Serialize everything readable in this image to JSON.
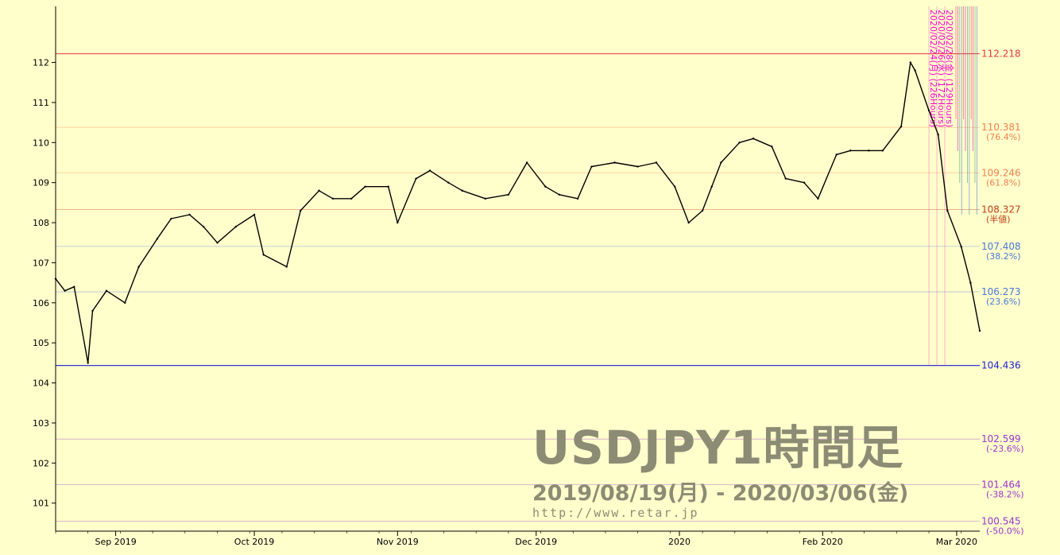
{
  "watermark": {
    "title": "USDJPY1時間足",
    "range": "2019/08/19(月) - 2020/03/06(金)",
    "url": "http://www.retar.jp"
  },
  "colors": {
    "background": "#ffffcc",
    "price_line": "#000000",
    "high": "#e8383d",
    "low": "#1f1fd6",
    "fib_upper": "#f08050",
    "fib_mid": "#c0401a",
    "fib_lower": "#4a78d8",
    "fib_ext": "#9933cc",
    "time_markers": "#ff00cc"
  },
  "chart_data": {
    "type": "line",
    "title": "",
    "xlabel": "",
    "ylabel": "",
    "ylim": [
      100.3,
      113.4
    ],
    "yticks": [
      101,
      102,
      103,
      104,
      105,
      106,
      107,
      108,
      109,
      110,
      111,
      112
    ],
    "xlim": [
      "2019-08-19",
      "2020-03-06"
    ],
    "xticks": [
      {
        "date": "2019-09-01",
        "label": "Sep 2019"
      },
      {
        "date": "2019-10-01",
        "label": "Oct 2019"
      },
      {
        "date": "2019-11-01",
        "label": "Nov 2019"
      },
      {
        "date": "2019-12-01",
        "label": "Dec 2019"
      },
      {
        "date": "2020-01-01",
        "label": "2020"
      },
      {
        "date": "2020-02-01",
        "label": "Feb 2020"
      },
      {
        "date": "2020-03-01",
        "label": "Mar 2020"
      }
    ],
    "series": [
      {
        "x": [
          "2019-08-19",
          "2019-08-21",
          "2019-08-23",
          "2019-08-26",
          "2019-08-27",
          "2019-08-30",
          "2019-09-03",
          "2019-09-06",
          "2019-09-10",
          "2019-09-13",
          "2019-09-17",
          "2019-09-20",
          "2019-09-23",
          "2019-09-27",
          "2019-10-01",
          "2019-10-03",
          "2019-10-08",
          "2019-10-11",
          "2019-10-15",
          "2019-10-18",
          "2019-10-22",
          "2019-10-25",
          "2019-10-30",
          "2019-11-01",
          "2019-11-05",
          "2019-11-08",
          "2019-11-12",
          "2019-11-15",
          "2019-11-20",
          "2019-11-25",
          "2019-11-29",
          "2019-12-03",
          "2019-12-06",
          "2019-12-10",
          "2019-12-13",
          "2019-12-18",
          "2019-12-23",
          "2019-12-27",
          "2019-12-31",
          "2020-01-03",
          "2020-01-06",
          "2020-01-08",
          "2020-01-10",
          "2020-01-14",
          "2020-01-17",
          "2020-01-21",
          "2020-01-24",
          "2020-01-28",
          "2020-01-31",
          "2020-02-04",
          "2020-02-07",
          "2020-02-11",
          "2020-02-14",
          "2020-02-18",
          "2020-02-20",
          "2020-02-21",
          "2020-02-24",
          "2020-02-26",
          "2020-02-28",
          "2020-03-02",
          "2020-03-04",
          "2020-03-06"
        ],
        "y": [
          106.6,
          106.3,
          106.4,
          104.5,
          105.8,
          106.3,
          106.0,
          106.9,
          107.6,
          108.1,
          108.2,
          107.9,
          107.5,
          107.9,
          108.2,
          107.2,
          106.9,
          108.3,
          108.8,
          108.6,
          108.6,
          108.9,
          108.9,
          108.0,
          109.1,
          109.3,
          109.0,
          108.8,
          108.6,
          108.7,
          109.5,
          108.9,
          108.7,
          108.6,
          109.4,
          109.5,
          109.4,
          109.5,
          108.9,
          108.0,
          108.3,
          108.9,
          109.5,
          110.0,
          110.1,
          109.9,
          109.1,
          109.0,
          108.6,
          109.7,
          109.8,
          109.8,
          109.8,
          110.4,
          112.0,
          111.8,
          110.8,
          110.2,
          108.3,
          107.4,
          106.5,
          105.3
        ]
      }
    ],
    "levels": [
      {
        "value": 112.218,
        "label": "112.218",
        "sub": "",
        "kind": "high"
      },
      {
        "value": 110.381,
        "label": "110.381",
        "sub": "(76.4%)",
        "kind": "fib_upper"
      },
      {
        "value": 109.246,
        "label": "109.246",
        "sub": "(61.8%)",
        "kind": "fib_upper"
      },
      {
        "value": 108.327,
        "label": "108.327",
        "sub": "(半値)",
        "kind": "fib_mid"
      },
      {
        "value": 107.408,
        "label": "107.408",
        "sub": "(38.2%)",
        "kind": "fib_lower"
      },
      {
        "value": 106.273,
        "label": "106.273",
        "sub": "(23.6%)",
        "kind": "fib_lower"
      },
      {
        "value": 104.436,
        "label": "104.436",
        "sub": "",
        "kind": "low"
      },
      {
        "value": 102.599,
        "label": "102.599",
        "sub": "(-23.6%)",
        "kind": "fib_ext"
      },
      {
        "value": 101.464,
        "label": "101.464",
        "sub": "(-38.2%)",
        "kind": "fib_ext"
      },
      {
        "value": 100.545,
        "label": "100.545",
        "sub": "(-50.0%)",
        "kind": "fib_ext"
      }
    ],
    "time_markers": [
      {
        "label": "2020/02/24(月) (226Hours)"
      },
      {
        "label": "2020/02/26(水) (172Hours)"
      },
      {
        "label": "2020/02/28(金) (129Hours)"
      }
    ]
  }
}
